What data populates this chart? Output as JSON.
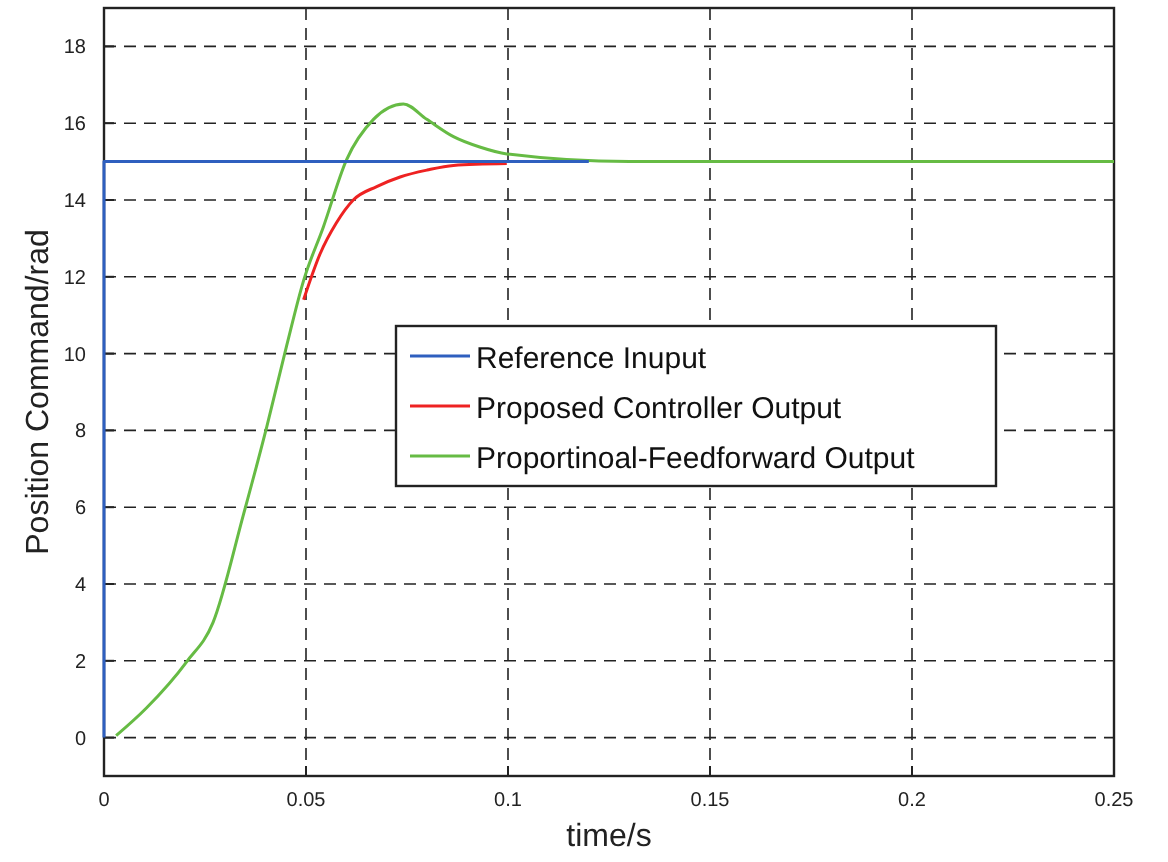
{
  "chart_data": {
    "type": "line",
    "xlabel": "time/s",
    "ylabel": "Position Command/rad",
    "xlim": [
      0,
      0.25
    ],
    "xticks": [
      0,
      0.05,
      0.1,
      0.15,
      0.2,
      0.25
    ],
    "ylim": [
      -1,
      19
    ],
    "yticks": [
      0,
      2,
      4,
      6,
      8,
      10,
      12,
      14,
      16,
      18
    ],
    "grid": true,
    "legend": "right",
    "series": [
      {
        "name": "Reference Inuput",
        "color": "#2e5fbf",
        "x": [
          0,
          0,
          0.12
        ],
        "values": [
          0,
          15,
          15
        ]
      },
      {
        "name": "Proposed Controller Output",
        "color": "#ee2222",
        "x": [
          0.0494,
          0.0535,
          0.0575,
          0.0617,
          0.0675,
          0.0733,
          0.08,
          0.0865,
          0.0997
        ],
        "values": [
          11.4,
          12.6,
          13.4,
          14.0,
          14.35,
          14.6,
          14.78,
          14.9,
          14.95
        ]
      },
      {
        "name": "Proportinoal-Feedforward Output",
        "color": "#66bb44",
        "x": [
          0.003,
          0.0105,
          0.0205,
          0.027,
          0.0345,
          0.0403,
          0.0452,
          0.0494,
          0.0543,
          0.06,
          0.0667,
          0.0741,
          0.0799,
          0.0865,
          0.093,
          0.0997,
          0.13,
          0.25
        ],
        "values": [
          0.05,
          0.77,
          1.98,
          3.0,
          5.8,
          8.1,
          10.2,
          11.9,
          13.3,
          15.04,
          16.1,
          16.5,
          16.1,
          15.65,
          15.38,
          15.2,
          15,
          15
        ]
      }
    ]
  }
}
